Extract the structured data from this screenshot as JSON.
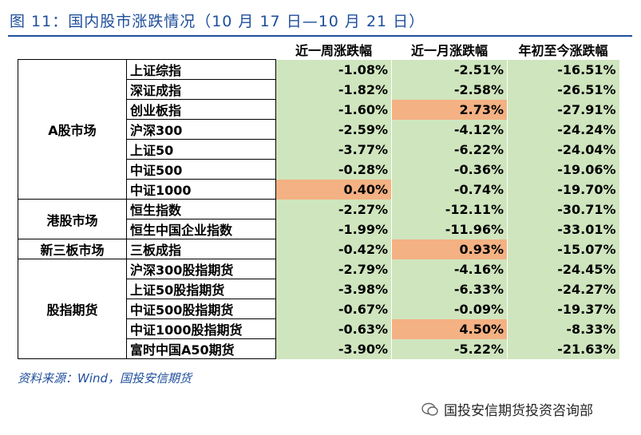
{
  "title": "图 11：国内股市涨跌情况（10 月 17 日—10 月 21 日）",
  "table": {
    "columns": [
      "近一周涨跌幅",
      "近一月涨跌幅",
      "年初至今涨跌幅"
    ],
    "groups": [
      {
        "name": "A股市场",
        "rows": [
          {
            "name": "上证综指",
            "values": [
              "-1.08%",
              "-2.51%",
              "-16.51%"
            ]
          },
          {
            "name": "深证成指",
            "values": [
              "-1.82%",
              "-2.58%",
              "-26.51%"
            ]
          },
          {
            "name": "创业板指",
            "values": [
              "-1.60%",
              "2.73%",
              "-27.91%"
            ]
          },
          {
            "name": "沪深300",
            "values": [
              "-2.59%",
              "-4.12%",
              "-24.24%"
            ]
          },
          {
            "name": "上证50",
            "values": [
              "-3.77%",
              "-6.22%",
              "-24.04%"
            ]
          },
          {
            "name": "中证500",
            "values": [
              "-0.28%",
              "-0.36%",
              "-19.06%"
            ]
          },
          {
            "name": "中证1000",
            "values": [
              "0.40%",
              "-0.74%",
              "-19.70%"
            ]
          }
        ]
      },
      {
        "name": "港股市场",
        "rows": [
          {
            "name": "恒生指数",
            "values": [
              "-2.27%",
              "-12.11%",
              "-30.71%"
            ]
          },
          {
            "name": "恒生中国企业指数",
            "values": [
              "-1.99%",
              "-11.96%",
              "-33.01%"
            ]
          }
        ]
      },
      {
        "name": "新三板市场",
        "rows": [
          {
            "name": "三板成指",
            "values": [
              "-0.42%",
              "0.93%",
              "-15.07%"
            ]
          }
        ]
      },
      {
        "name": "股指期货",
        "rows": [
          {
            "name": "沪深300股指期货",
            "values": [
              "-2.79%",
              "-4.16%",
              "-24.45%"
            ]
          },
          {
            "name": "上证50股指期货",
            "values": [
              "-3.98%",
              "-6.33%",
              "-24.27%"
            ]
          },
          {
            "name": "中证500股指期货",
            "values": [
              "-0.67%",
              "-0.09%",
              "-19.37%"
            ]
          },
          {
            "name": "中证1000股指期货",
            "values": [
              "-0.63%",
              "4.50%",
              "-8.33%"
            ]
          },
          {
            "name": "富时中国A50期货",
            "values": [
              "-3.90%",
              "-5.22%",
              "-21.63%"
            ]
          }
        ]
      }
    ]
  },
  "source": "资料来源：Wind，国投安信期货",
  "watermark": "国投安信期货投资咨询部"
}
